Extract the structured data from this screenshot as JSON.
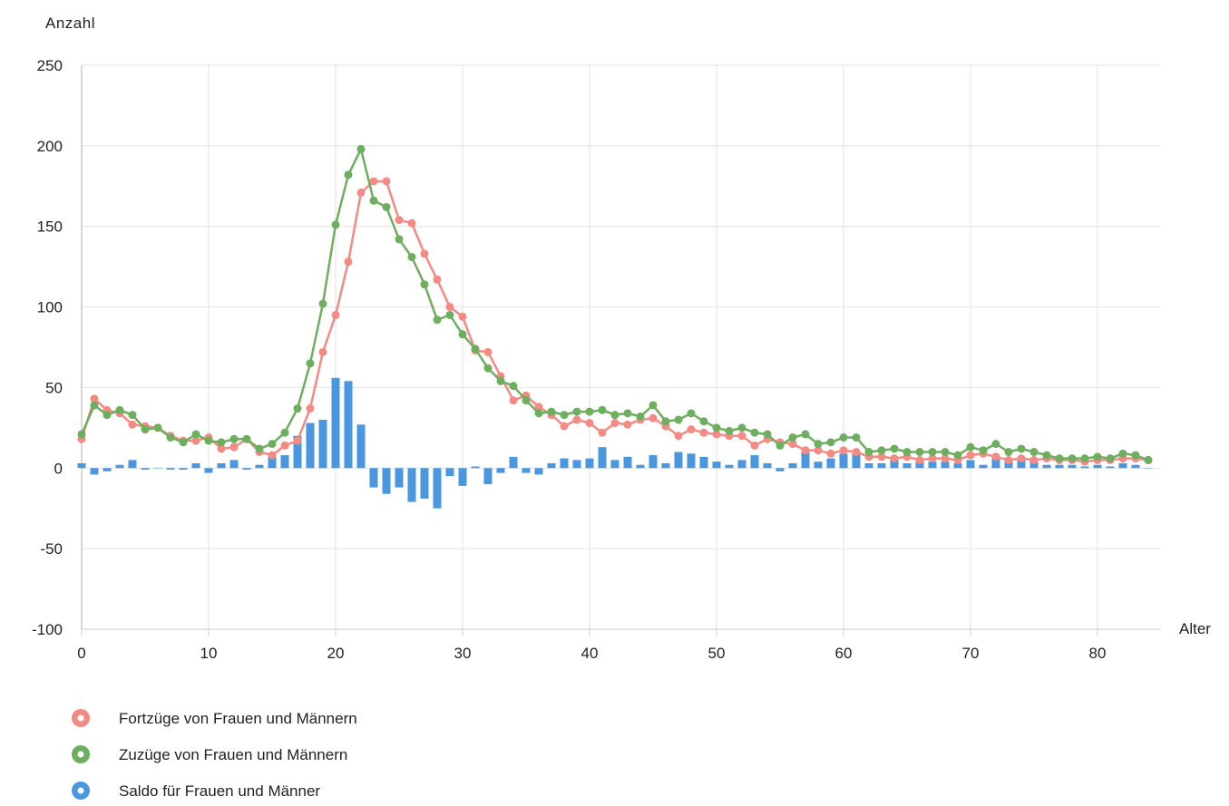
{
  "chart_data": {
    "type": "line",
    "ylabel": "Anzahl",
    "xlabel": "Alter",
    "ylim": [
      -100,
      250
    ],
    "yticks": [
      -100,
      -50,
      0,
      50,
      100,
      150,
      200,
      250
    ],
    "xlim": [
      0,
      85
    ],
    "xticks": [
      0,
      10,
      20,
      30,
      40,
      50,
      60,
      70,
      80
    ],
    "grid": true,
    "legend_position": "bottom-left",
    "x": [
      0,
      1,
      2,
      3,
      4,
      5,
      6,
      7,
      8,
      9,
      10,
      11,
      12,
      13,
      14,
      15,
      16,
      17,
      18,
      19,
      20,
      21,
      22,
      23,
      24,
      25,
      26,
      27,
      28,
      29,
      30,
      31,
      32,
      33,
      34,
      35,
      36,
      37,
      38,
      39,
      40,
      41,
      42,
      43,
      44,
      45,
      46,
      47,
      48,
      49,
      50,
      51,
      52,
      53,
      54,
      55,
      56,
      57,
      58,
      59,
      60,
      61,
      62,
      63,
      64,
      65,
      66,
      67,
      68,
      69,
      70,
      71,
      72,
      73,
      74,
      75,
      76,
      77,
      78,
      79,
      80,
      81,
      82,
      83,
      84
    ],
    "series": [
      {
        "name": "Fortzüge von Frauen und Männern",
        "kind": "line",
        "color": "#f48a84",
        "values": [
          18,
          43,
          36,
          34,
          27,
          26,
          25,
          20,
          17,
          17,
          19,
          12,
          13,
          18,
          10,
          8,
          14,
          17,
          37,
          72,
          95,
          128,
          171,
          178,
          178,
          154,
          152,
          133,
          117,
          100,
          94,
          73,
          72,
          57,
          42,
          45,
          38,
          33,
          26,
          30,
          28,
          22,
          28,
          27,
          30,
          31,
          26,
          20,
          24,
          22,
          21,
          20,
          20,
          14,
          18,
          16,
          15,
          11,
          11,
          9,
          11,
          10,
          7,
          7,
          6,
          7,
          5,
          6,
          6,
          5,
          8,
          9,
          7,
          5,
          6,
          5,
          6,
          5,
          5,
          4,
          5,
          5,
          6,
          6,
          5
        ]
      },
      {
        "name": "Zuzüge von Frauen und Männern",
        "kind": "line",
        "color": "#6daf5f",
        "values": [
          21,
          39,
          33,
          36,
          33,
          24,
          25,
          19,
          16,
          21,
          17,
          16,
          18,
          18,
          12,
          15,
          22,
          37,
          65,
          102,
          151,
          182,
          198,
          166,
          162,
          142,
          131,
          114,
          92,
          95,
          83,
          74,
          62,
          54,
          51,
          42,
          34,
          35,
          33,
          35,
          35,
          36,
          33,
          34,
          32,
          39,
          29,
          30,
          34,
          29,
          25,
          23,
          25,
          22,
          21,
          14,
          19,
          21,
          15,
          16,
          19,
          19,
          10,
          11,
          12,
          10,
          10,
          10,
          10,
          8,
          13,
          11,
          15,
          10,
          12,
          10,
          8,
          6,
          6,
          6,
          7,
          6,
          9,
          8,
          5
        ]
      },
      {
        "name": "Saldo für Frauen und Männer",
        "kind": "bar",
        "color": "#4a96df",
        "values": [
          3,
          -4,
          -2,
          2,
          5,
          -1,
          0,
          -1,
          -1,
          3,
          -3,
          3,
          5,
          -1,
          2,
          7,
          8,
          20,
          28,
          30,
          56,
          54,
          27,
          -12,
          -16,
          -12,
          -21,
          -19,
          -25,
          -5,
          -11,
          1,
          -10,
          -3,
          7,
          -3,
          -4,
          3,
          6,
          5,
          6,
          13,
          5,
          7,
          2,
          8,
          3,
          10,
          9,
          7,
          4,
          2,
          5,
          8,
          3,
          -2,
          3,
          10,
          4,
          6,
          9,
          9,
          3,
          3,
          6,
          3,
          4,
          4,
          4,
          3,
          5,
          2,
          7,
          5,
          6,
          5,
          2,
          2,
          2,
          1,
          2,
          1,
          3,
          2,
          0
        ]
      }
    ]
  }
}
